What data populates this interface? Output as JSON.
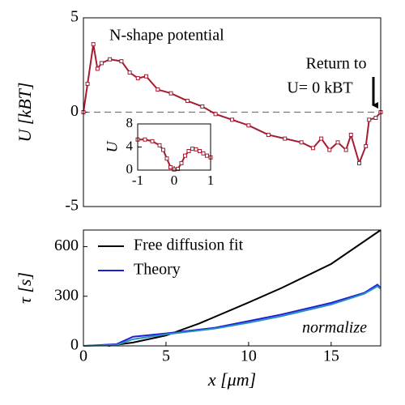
{
  "chart_data": [
    {
      "type": "line",
      "ylabel": "U [kBT]",
      "xlim": [
        0,
        18
      ],
      "ylim": [
        -5,
        5
      ],
      "yticks": [
        -5,
        0,
        5
      ],
      "reference_line": 0,
      "annotations": [
        "N-shape potential",
        "Return to",
        "U= 0 kBT"
      ],
      "series": [
        {
          "color": "#a51c30",
          "markers": true,
          "x": [
            0,
            0.25,
            0.6,
            0.85,
            1.1,
            1.6,
            2.3,
            2.8,
            3.3,
            3.8,
            4.5,
            5.3,
            6.3,
            7.2,
            8.0,
            9.0,
            10.0,
            11.2,
            12.2,
            13.2,
            13.9,
            14.4,
            14.9,
            15.4,
            15.9,
            16.2,
            16.7,
            17.1,
            17.3,
            17.7,
            18.0
          ],
          "values": [
            0,
            1.5,
            3.6,
            2.3,
            2.6,
            2.8,
            2.7,
            2.1,
            1.8,
            1.9,
            1.2,
            1.0,
            0.6,
            0.3,
            -0.1,
            -0.4,
            -0.7,
            -1.2,
            -1.4,
            -1.6,
            -1.9,
            -1.4,
            -2.0,
            -1.6,
            -2.0,
            -1.2,
            -2.7,
            -1.8,
            -0.4,
            -0.3,
            0
          ]
        }
      ]
    },
    {
      "type": "line",
      "ylabel": "U",
      "xlim": [
        -1,
        1
      ],
      "ylim": [
        0,
        8
      ],
      "xticks": [
        -1,
        0,
        1
      ],
      "yticks": [
        0,
        4,
        8
      ],
      "series": [
        {
          "color": "#a51c30",
          "markers": true,
          "x": [
            -1,
            -0.8,
            -0.6,
            -0.4,
            -0.3,
            -0.2,
            -0.1,
            0,
            0.1,
            0.2,
            0.3,
            0.4,
            0.5,
            0.6,
            0.7,
            0.8,
            0.9,
            1
          ],
          "values": [
            5.3,
            5.3,
            5.0,
            4.3,
            3.5,
            2.0,
            0.5,
            0.1,
            0.2,
            1.2,
            2.5,
            3.3,
            3.7,
            3.6,
            3.3,
            2.9,
            2.5,
            2.2
          ]
        }
      ]
    },
    {
      "type": "line",
      "xlabel": "x [μm]",
      "ylabel": "τ [s]",
      "xlim": [
        0,
        18
      ],
      "ylim": [
        0,
        700
      ],
      "xticks": [
        0,
        5,
        10,
        15
      ],
      "yticks": [
        0,
        300,
        600
      ],
      "annotations": [
        "normalize"
      ],
      "series": [
        {
          "name": "Free diffusion fit",
          "color": "#000000",
          "x": [
            1.5,
            3,
            5,
            7,
            10,
            12,
            15,
            18
          ],
          "values": [
            0,
            20,
            63,
            135,
            262,
            350,
            495,
            700
          ]
        },
        {
          "name": "Theory",
          "color": "#1f1fd6",
          "x": [
            0,
            2,
            3,
            5,
            8,
            10,
            12,
            15,
            17,
            17.8,
            18
          ],
          "values": [
            0,
            10,
            55,
            75,
            110,
            150,
            190,
            260,
            320,
            370,
            350
          ]
        },
        {
          "color": "#2a8fbd",
          "x": [
            0,
            2,
            3,
            5,
            8,
            10,
            12,
            15,
            17,
            17.8,
            18
          ],
          "values": [
            0,
            5,
            40,
            70,
            105,
            140,
            180,
            250,
            315,
            360,
            345
          ]
        }
      ]
    }
  ]
}
